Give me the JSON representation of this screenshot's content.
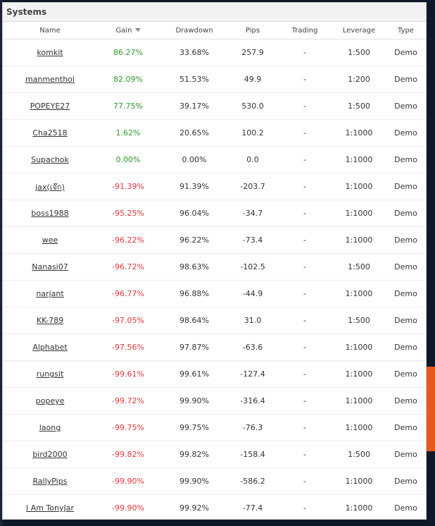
{
  "panel": {
    "title": "Systems"
  },
  "columns": {
    "name": "Name",
    "gain": "Gain",
    "drawdown": "Drawdown",
    "pips": "Pips",
    "trading": "Trading",
    "leverage": "Leverage",
    "type": "Type"
  },
  "colors": {
    "positive": "#2e9a2e",
    "negative": "#e0383b"
  },
  "rows": [
    {
      "name": "komkit",
      "gain": "86.27%",
      "drawdown": "33.68%",
      "pips": "257.9",
      "trading": "-",
      "leverage": "1:500",
      "type": "Demo"
    },
    {
      "name": "manmenthol",
      "gain": "82.09%",
      "drawdown": "51.53%",
      "pips": "49.9",
      "trading": "-",
      "leverage": "1:200",
      "type": "Demo"
    },
    {
      "name": "POPEYE27",
      "gain": "77.75%",
      "drawdown": "39.17%",
      "pips": "530.0",
      "trading": "-",
      "leverage": "1:500",
      "type": "Demo"
    },
    {
      "name": "Cha2518",
      "gain": "1.62%",
      "drawdown": "20.65%",
      "pips": "100.2",
      "trading": "-",
      "leverage": "1:1000",
      "type": "Demo"
    },
    {
      "name": "Supachok",
      "gain": "0.00%",
      "drawdown": "0.00%",
      "pips": "0.0",
      "trading": "-",
      "leverage": "1:1000",
      "type": "Demo"
    },
    {
      "name": "jax(เจ๊ก)",
      "gain": "-91.39%",
      "drawdown": "91.39%",
      "pips": "-203.7",
      "trading": "-",
      "leverage": "1:1000",
      "type": "Demo"
    },
    {
      "name": "boss1988",
      "gain": "-95.25%",
      "drawdown": "96.04%",
      "pips": "-34.7",
      "trading": "-",
      "leverage": "1:1000",
      "type": "Demo"
    },
    {
      "name": "wee",
      "gain": "-96.22%",
      "drawdown": "96.22%",
      "pips": "-73.4",
      "trading": "-",
      "leverage": "1:1000",
      "type": "Demo"
    },
    {
      "name": "Nanasi07",
      "gain": "-96.72%",
      "drawdown": "98.63%",
      "pips": "-102.5",
      "trading": "-",
      "leverage": "1:500",
      "type": "Demo"
    },
    {
      "name": "narjant",
      "gain": "-96.77%",
      "drawdown": "96.88%",
      "pips": "-44.9",
      "trading": "-",
      "leverage": "1:1000",
      "type": "Demo"
    },
    {
      "name": "KK-789",
      "gain": "-97.05%",
      "drawdown": "98.64%",
      "pips": "31.0",
      "trading": "-",
      "leverage": "1:500",
      "type": "Demo"
    },
    {
      "name": "Alphabet",
      "gain": "-97.56%",
      "drawdown": "97.87%",
      "pips": "-63.6",
      "trading": "-",
      "leverage": "1:1000",
      "type": "Demo"
    },
    {
      "name": "rungsit",
      "gain": "-99.61%",
      "drawdown": "99.61%",
      "pips": "-127.4",
      "trading": "-",
      "leverage": "1:1000",
      "type": "Demo"
    },
    {
      "name": "popeye",
      "gain": "-99.72%",
      "drawdown": "99.90%",
      "pips": "-316.4",
      "trading": "-",
      "leverage": "1:1000",
      "type": "Demo"
    },
    {
      "name": "laong",
      "gain": "-99.75%",
      "drawdown": "99.75%",
      "pips": "-76.3",
      "trading": "-",
      "leverage": "1:1000",
      "type": "Demo"
    },
    {
      "name": "bird2000",
      "gain": "-99.82%",
      "drawdown": "99.82%",
      "pips": "-158.4",
      "trading": "-",
      "leverage": "1:500",
      "type": "Demo"
    },
    {
      "name": "RallyPips",
      "gain": "-99.90%",
      "drawdown": "99.90%",
      "pips": "-586.2",
      "trading": "-",
      "leverage": "1:1000",
      "type": "Demo"
    },
    {
      "name": "I Am TonyJar",
      "gain": "-99.90%",
      "drawdown": "99.92%",
      "pips": "-77.4",
      "trading": "-",
      "leverage": "1:1000",
      "type": "Demo"
    }
  ]
}
